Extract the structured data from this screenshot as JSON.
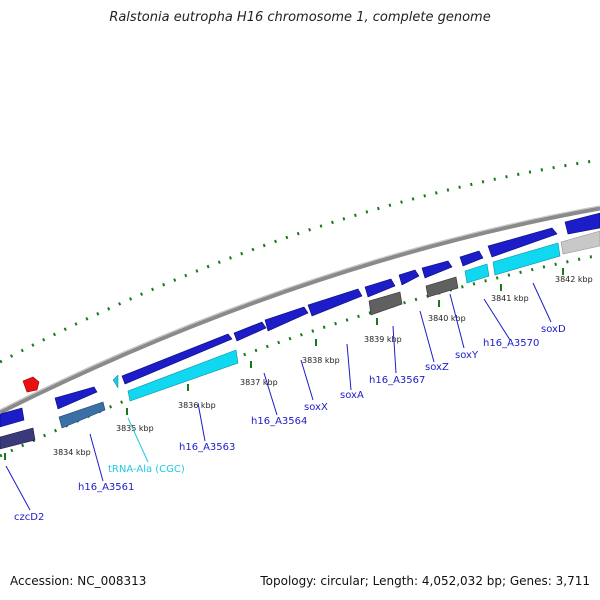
{
  "title": "Ralstonia eutropha H16 chromosome 1, complete genome",
  "footer": {
    "accession": "Accession: NC_008313",
    "stats": "Topology: circular; Length: 4,052,032 bp; Genes: 3,711"
  },
  "colors": {
    "gene_dark_blue": "#1c1cc8",
    "gene_cyan": "#10d8f0",
    "gene_steel": "#3a6fa8",
    "gene_navy": "#3a3a7a",
    "gene_gray": "#606060",
    "gene_light_gray": "#c8c8c8",
    "rna_cyan": "#20c8e0",
    "marker_red": "#e81010",
    "backbone_gray": "#8a8a8a",
    "tick_green": "#1a7a1a"
  },
  "scale_ticks": [
    "3834 kbp",
    "3835 kbp",
    "3836 kbp",
    "3837 kbp",
    "3838 kbp",
    "3839 kbp",
    "3840 kbp",
    "3841 kbp",
    "3842 kbp"
  ],
  "gene_labels": {
    "czcD2": "czcD2",
    "h16_A3561": "h16_A3561",
    "trna_ala": "tRNA-Ala (CGC)",
    "h16_A3563": "h16_A3563",
    "h16_A3564": "h16_A3564",
    "soxX": "soxX",
    "soxA": "soxA",
    "h16_A3567": "h16_A3567",
    "soxZ": "soxZ",
    "soxY": "soxY",
    "h16_A3570": "h16_A3570",
    "soxD": "soxD"
  }
}
